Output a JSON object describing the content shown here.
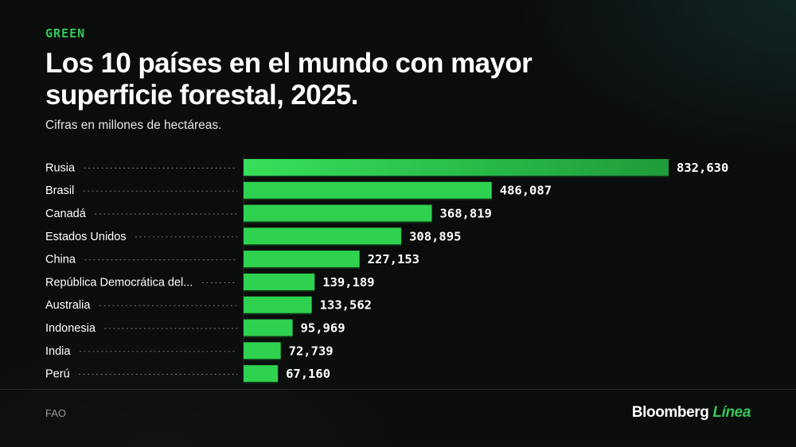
{
  "header": {
    "kicker": "GREEN",
    "title": "Los 10 países en el mundo con mayor superficie forestal, 2025.",
    "subtitle": "Cifras en millones de hectáreas."
  },
  "footer": {
    "source": "FAO",
    "brand_primary": "Bloomberg",
    "brand_secondary": "Línea"
  },
  "colors": {
    "background": "#0b0c0c",
    "bar": "#2ed24f",
    "bar_top": "#34c759",
    "accent": "#34c759",
    "text": "#ffffff"
  },
  "chart_data": {
    "type": "bar",
    "orientation": "horizontal",
    "categories": [
      "Rusia",
      "Brasil",
      "Canadá",
      "Estados Unidos",
      "China",
      "República Democrática del...",
      "Australia",
      "Indonesia",
      "India",
      "Perú"
    ],
    "values": [
      832630,
      486087,
      368819,
      308895,
      227153,
      139189,
      133562,
      95969,
      72739,
      67160
    ],
    "value_labels": [
      "832,630",
      "486,087",
      "368,819",
      "308,895",
      "227,153",
      "139,189",
      "133,562",
      "95,969",
      "72,739",
      "67,160"
    ],
    "title": "Los 10 países en el mundo con mayor superficie forestal, 2025.",
    "subtitle": "Cifras en millones de hectáreas.",
    "xlim": [
      0,
      832630
    ],
    "grid": false,
    "legend": "none"
  }
}
